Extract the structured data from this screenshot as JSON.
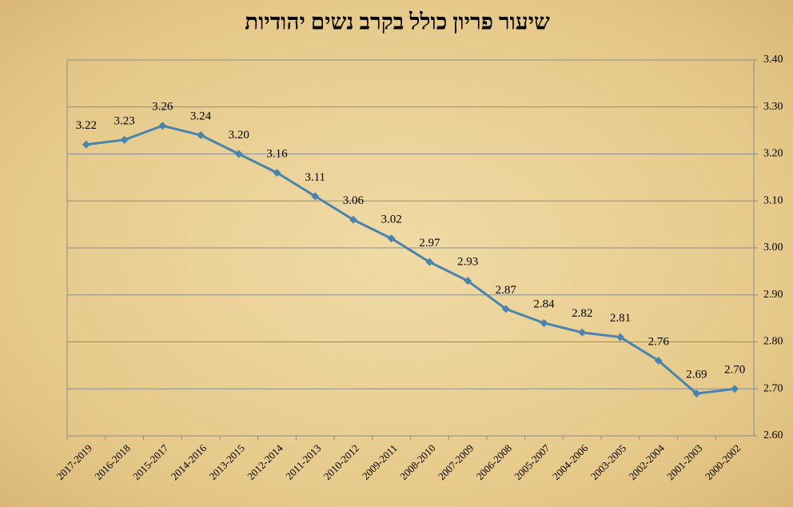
{
  "chart_data": {
    "type": "line",
    "title": "שיעור פריון כולל בקרב נשים יהודיות",
    "categories": [
      "2017-2019",
      "2016-2018",
      "2015-2017",
      "2014-2016",
      "2013-2015",
      "2012-2014",
      "2011-2013",
      "2010-2012",
      "2009-2011",
      "2008-2010",
      "2007-2009",
      "2006-2008",
      "2005-2007",
      "2004-2006",
      "2003-2005",
      "2002-2004",
      "2001-2003",
      "2000-2002"
    ],
    "series": [
      {
        "color": "#4a84ad",
        "values": [
          3.22,
          3.23,
          3.26,
          3.24,
          3.2,
          3.16,
          3.11,
          3.06,
          3.02,
          2.97,
          2.93,
          2.87,
          2.84,
          2.82,
          2.81,
          2.76,
          2.69,
          2.7
        ],
        "value_labels": [
          "3.22",
          "3.23",
          "3.26",
          "3.24",
          "3.20",
          "3.16",
          "3.11",
          "3.06",
          "3.02",
          "2.97",
          "2.93",
          "2.87",
          "2.84",
          "2.82",
          "2.81",
          "2.76",
          "2.69",
          "2.70"
        ]
      }
    ],
    "ylim": [
      2.6,
      3.4
    ],
    "yticks": [
      {
        "value": 2.6,
        "label": "2.60"
      },
      {
        "value": 2.7,
        "label": "2.70"
      },
      {
        "value": 2.8,
        "label": "2.80"
      },
      {
        "value": 2.9,
        "label": "2.90"
      },
      {
        "value": 3.0,
        "label": "3.00"
      },
      {
        "value": 3.1,
        "label": "3.10"
      },
      {
        "value": 3.2,
        "label": "3.20"
      },
      {
        "value": 3.3,
        "label": "3.30"
      },
      {
        "value": 3.4,
        "label": "3.40"
      }
    ],
    "y_axis_side": "right",
    "grid": true
  }
}
